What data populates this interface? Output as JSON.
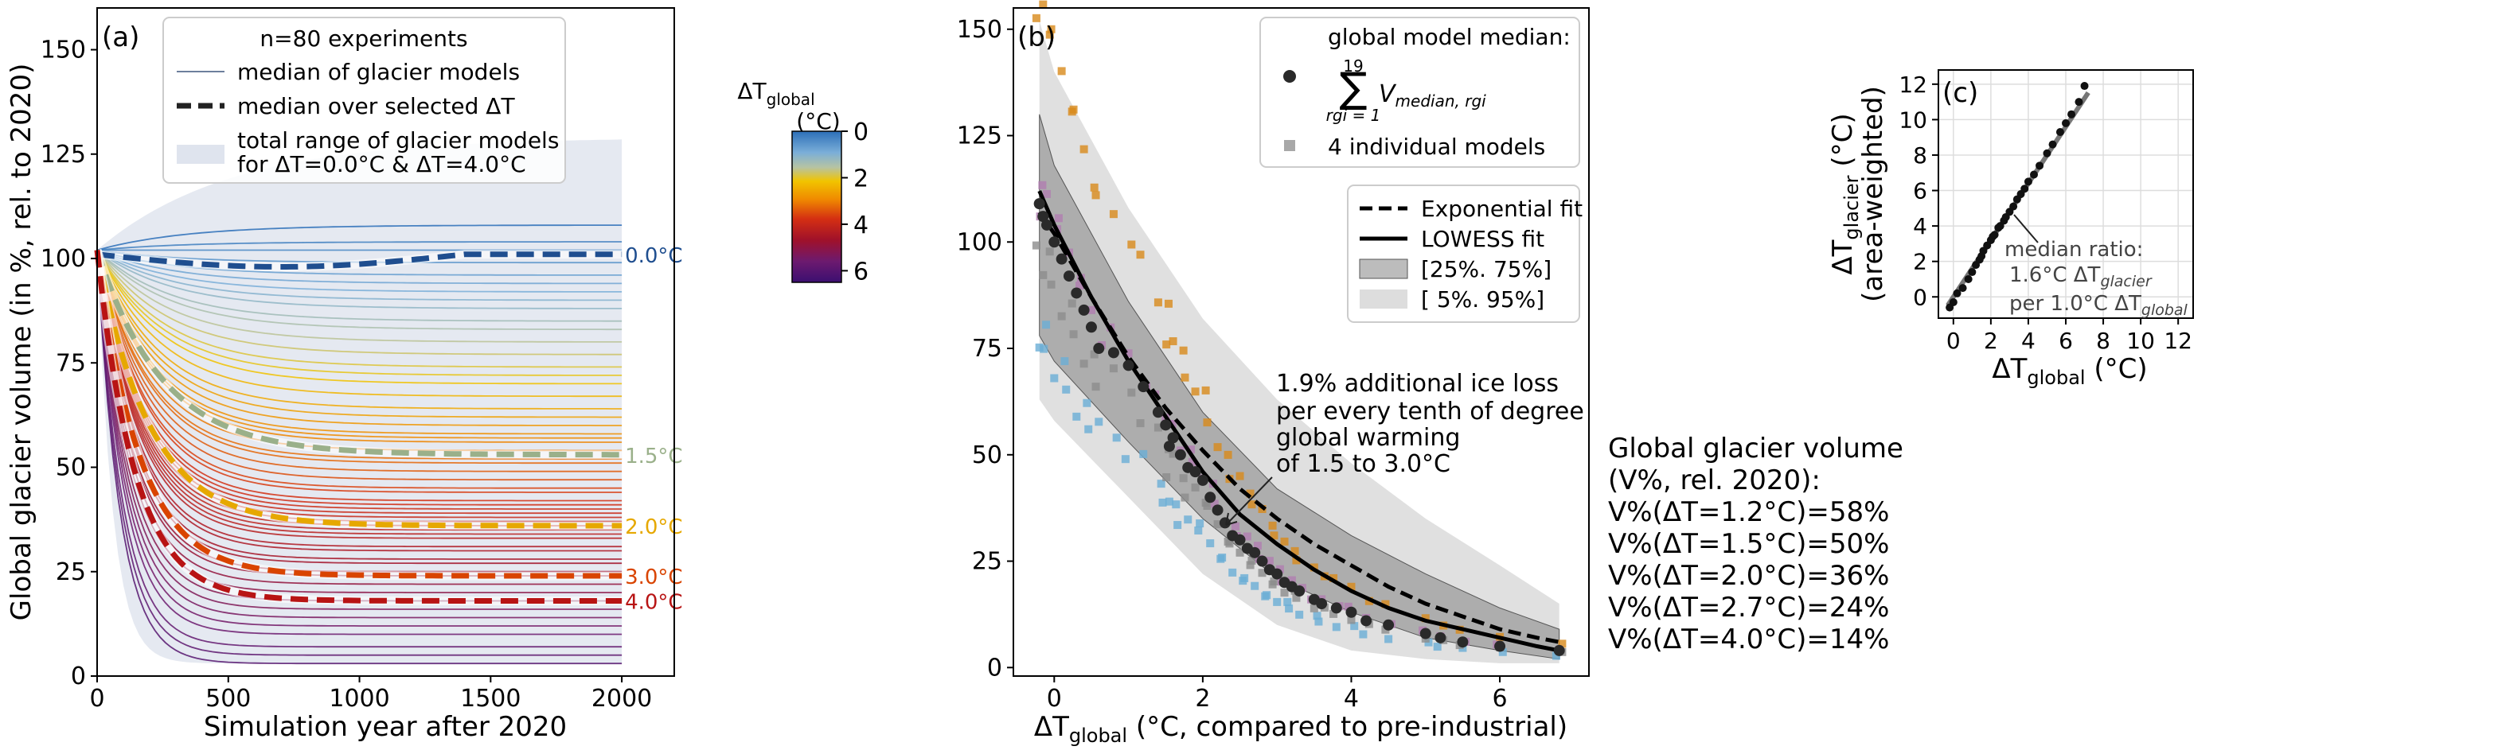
{
  "chart_data": [
    {
      "panel": "(a)",
      "type": "line",
      "xlabel": "Simulation year after 2020",
      "ylabel": "Global glacier volume (in %, rel. to 2020)",
      "xlim": [
        0,
        2200
      ],
      "ylim": [
        0,
        160
      ],
      "xticks": [
        0,
        500,
        1000,
        1500,
        2000
      ],
      "yticks": [
        0,
        25,
        50,
        75,
        100,
        125,
        150
      ],
      "legend_title": "n=80 experiments",
      "legend": [
        "median of glacier models",
        "median over selected ΔT",
        "total range of glacier models",
        "for ΔT=0.0°C & ΔT=4.0°C"
      ],
      "series": [
        {
          "label": "0.0°C",
          "dT": 0.0,
          "color": "#1f4e8f",
          "final": 101
        },
        {
          "label": "1.5°C",
          "dT": 1.5,
          "color": "#9ab08a",
          "final": 53
        },
        {
          "label": "2.0°C",
          "dT": 2.0,
          "color": "#e6a800",
          "final": 36
        },
        {
          "label": "3.0°C",
          "dT": 3.0,
          "color": "#d94400",
          "final": 24
        },
        {
          "label": "4.0°C",
          "dT": 4.0,
          "color": "#b81414",
          "final": 18
        }
      ],
      "experiment_finals": [
        3,
        5,
        7,
        10,
        12,
        14,
        16,
        18,
        20,
        22,
        24,
        25,
        27,
        28,
        30,
        31,
        33,
        34,
        35,
        36,
        37,
        38,
        39,
        40,
        41,
        42,
        44,
        45,
        47,
        49,
        51,
        52,
        54,
        56,
        57,
        58,
        60,
        62,
        64,
        67,
        70,
        72,
        74,
        77,
        80,
        83,
        85,
        88,
        90,
        92,
        94,
        96,
        99,
        102,
        104,
        108
      ],
      "range_band": {
        "upper_final": 129,
        "lower_final": 3
      }
    },
    {
      "panel": "(b)",
      "type": "scatter",
      "xlabel_main": "ΔT",
      "xlabel_sub": "global",
      "xlabel_rest": " (°C, compared to pre-industrial)",
      "xlim": [
        -0.55,
        7.2
      ],
      "ylim": [
        -2,
        155
      ],
      "xticks": [
        0,
        2,
        4,
        6
      ],
      "yticks": [
        0,
        25,
        50,
        75,
        100,
        125,
        150
      ],
      "legend_title": "global model median:",
      "legend_sum_top": "19",
      "legend_sum_bottom": "rgi = 1",
      "legend_sum_term": "V",
      "legend_sum_term_sub": "median, rgi",
      "legend_individual": "4 individual models",
      "legend_fits": [
        "Exponential fit",
        "LOWESS fit",
        "[25%. 75%]",
        "[ 5%. 95%]"
      ],
      "annotation": [
        "1.9% additional ice loss",
        "per every tenth of degree",
        "global warming",
        "of 1.5 to 3.0°C"
      ],
      "lowess": [
        [
          -0.2,
          112
        ],
        [
          0,
          104
        ],
        [
          0.5,
          87
        ],
        [
          1.0,
          72
        ],
        [
          1.5,
          59
        ],
        [
          2.0,
          46
        ],
        [
          2.5,
          36
        ],
        [
          3.0,
          29
        ],
        [
          3.5,
          23
        ],
        [
          4.0,
          18
        ],
        [
          4.5,
          14
        ],
        [
          5.0,
          11
        ],
        [
          5.5,
          9
        ],
        [
          6.0,
          7
        ],
        [
          6.5,
          5
        ],
        [
          6.8,
          4
        ]
      ],
      "exponential": [
        [
          -0.2,
          107
        ],
        [
          0,
          102
        ],
        [
          0.5,
          87
        ],
        [
          1.0,
          73
        ],
        [
          1.5,
          61
        ],
        [
          2.0,
          51
        ],
        [
          2.5,
          42
        ],
        [
          3.0,
          35
        ],
        [
          3.5,
          29
        ],
        [
          4.0,
          24
        ],
        [
          4.5,
          19
        ],
        [
          5.0,
          15
        ],
        [
          5.5,
          12
        ],
        [
          6.0,
          9
        ],
        [
          6.5,
          7
        ],
        [
          6.8,
          6
        ]
      ],
      "band_25_75": {
        "upper": [
          [
            -0.2,
            130
          ],
          [
            0,
            118
          ],
          [
            1,
            86
          ],
          [
            2,
            60
          ],
          [
            3,
            42
          ],
          [
            4,
            31
          ],
          [
            5,
            22
          ],
          [
            6,
            14
          ],
          [
            6.8,
            9
          ]
        ],
        "lower": [
          [
            -0.2,
            78
          ],
          [
            0,
            72
          ],
          [
            1,
            53
          ],
          [
            2,
            35
          ],
          [
            3,
            21
          ],
          [
            4,
            13
          ],
          [
            5,
            7
          ],
          [
            6,
            4
          ],
          [
            6.8,
            2
          ]
        ]
      },
      "band_5_95": {
        "upper": [
          [
            -0.2,
            152
          ],
          [
            0,
            140
          ],
          [
            1,
            108
          ],
          [
            2,
            82
          ],
          [
            3,
            63
          ],
          [
            4,
            48
          ],
          [
            5,
            35
          ],
          [
            6,
            24
          ],
          [
            6.8,
            15
          ]
        ],
        "lower": [
          [
            -0.2,
            63
          ],
          [
            0,
            58
          ],
          [
            1,
            40
          ],
          [
            2,
            22
          ],
          [
            3,
            10
          ],
          [
            4,
            4
          ],
          [
            5,
            2
          ],
          [
            6,
            1
          ],
          [
            6.8,
            1
          ]
        ]
      },
      "median_points": [
        [
          -0.2,
          109
        ],
        [
          -0.15,
          106
        ],
        [
          -0.1,
          104
        ],
        [
          0.0,
          100
        ],
        [
          0.1,
          96
        ],
        [
          0.2,
          92
        ],
        [
          0.3,
          88
        ],
        [
          0.4,
          84
        ],
        [
          0.5,
          80
        ],
        [
          0.6,
          75
        ],
        [
          0.8,
          74
        ],
        [
          1.0,
          71
        ],
        [
          1.2,
          66
        ],
        [
          1.4,
          60
        ],
        [
          1.5,
          57
        ],
        [
          1.55,
          52
        ],
        [
          1.6,
          54
        ],
        [
          1.7,
          50
        ],
        [
          1.8,
          47
        ],
        [
          1.9,
          46
        ],
        [
          2.0,
          44
        ],
        [
          2.1,
          40
        ],
        [
          2.2,
          37
        ],
        [
          2.3,
          34
        ],
        [
          2.4,
          31
        ],
        [
          2.5,
          30
        ],
        [
          2.6,
          28
        ],
        [
          2.7,
          27
        ],
        [
          2.8,
          25
        ],
        [
          2.9,
          23
        ],
        [
          3.0,
          22
        ],
        [
          3.1,
          20
        ],
        [
          3.2,
          19
        ],
        [
          3.3,
          18
        ],
        [
          3.5,
          16
        ],
        [
          3.6,
          15
        ],
        [
          3.8,
          14
        ],
        [
          4.0,
          13
        ],
        [
          4.2,
          11
        ],
        [
          4.5,
          10
        ],
        [
          5.0,
          8
        ],
        [
          5.2,
          7
        ],
        [
          5.5,
          6
        ],
        [
          6.0,
          5
        ],
        [
          6.8,
          4
        ]
      ],
      "individual_colors": [
        "#d8891a",
        "#6aaed6",
        "#b07db0",
        "#8c8c8c"
      ]
    },
    {
      "panel": "(c)",
      "type": "scatter",
      "xlabel_main": "ΔT",
      "xlabel_sub": "global",
      "xlabel_rest": " (°C)",
      "ylabel_line1_main": "ΔT",
      "ylabel_line1_sub": "glacier",
      "ylabel_line1_rest": " (°C)",
      "ylabel_line2": "(area-weighted)",
      "xlim": [
        -0.8,
        12.8
      ],
      "ylim": [
        -1.2,
        12.8
      ],
      "xticks": [
        0,
        2,
        4,
        6,
        8,
        10,
        12
      ],
      "yticks": [
        0,
        2,
        4,
        6,
        8,
        10,
        12
      ],
      "fit_slope": 1.6,
      "points": [
        [
          -0.2,
          -0.6
        ],
        [
          0.0,
          -0.3
        ],
        [
          0.2,
          0.2
        ],
        [
          0.5,
          0.5
        ],
        [
          0.8,
          1.0
        ],
        [
          1.0,
          1.4
        ],
        [
          1.2,
          1.8
        ],
        [
          1.4,
          2.1
        ],
        [
          1.5,
          2.3
        ],
        [
          1.6,
          2.6
        ],
        [
          1.8,
          2.9
        ],
        [
          2.0,
          3.2
        ],
        [
          2.1,
          3.4
        ],
        [
          2.2,
          3.5
        ],
        [
          2.4,
          3.9
        ],
        [
          2.5,
          4.0
        ],
        [
          2.7,
          4.3
        ],
        [
          2.8,
          4.5
        ],
        [
          3.0,
          4.8
        ],
        [
          3.2,
          5.1
        ],
        [
          3.4,
          5.5
        ],
        [
          3.6,
          5.8
        ],
        [
          3.8,
          6.1
        ],
        [
          4.0,
          6.5
        ],
        [
          4.3,
          6.9
        ],
        [
          4.6,
          7.4
        ],
        [
          5.0,
          8.1
        ],
        [
          5.3,
          8.6
        ],
        [
          5.7,
          9.3
        ],
        [
          6.0,
          9.8
        ],
        [
          6.3,
          10.3
        ],
        [
          6.7,
          11.0
        ],
        [
          7.0,
          11.9
        ]
      ],
      "annotation": [
        "median ratio:",
        "1.6°C ΔT",
        "glacier",
        "per 1.0°C ΔT",
        "global"
      ]
    }
  ],
  "colorbar": {
    "title_main": "ΔT",
    "title_sub": "global",
    "unit": "(°C)",
    "ticks": [
      "0",
      "2",
      "4",
      "6"
    ],
    "range": [
      0,
      6.5
    ]
  },
  "summary_text": {
    "title_line1": "Global glacier volume",
    "title_line2": "(V%, rel. 2020):",
    "lines": [
      "V%(ΔT=1.2°C)=58%",
      "V%(ΔT=1.5°C)=50%",
      "V%(ΔT=2.0°C)=36%",
      "V%(ΔT=2.7°C)=24%",
      "V%(ΔT=4.0°C)=14%"
    ]
  }
}
